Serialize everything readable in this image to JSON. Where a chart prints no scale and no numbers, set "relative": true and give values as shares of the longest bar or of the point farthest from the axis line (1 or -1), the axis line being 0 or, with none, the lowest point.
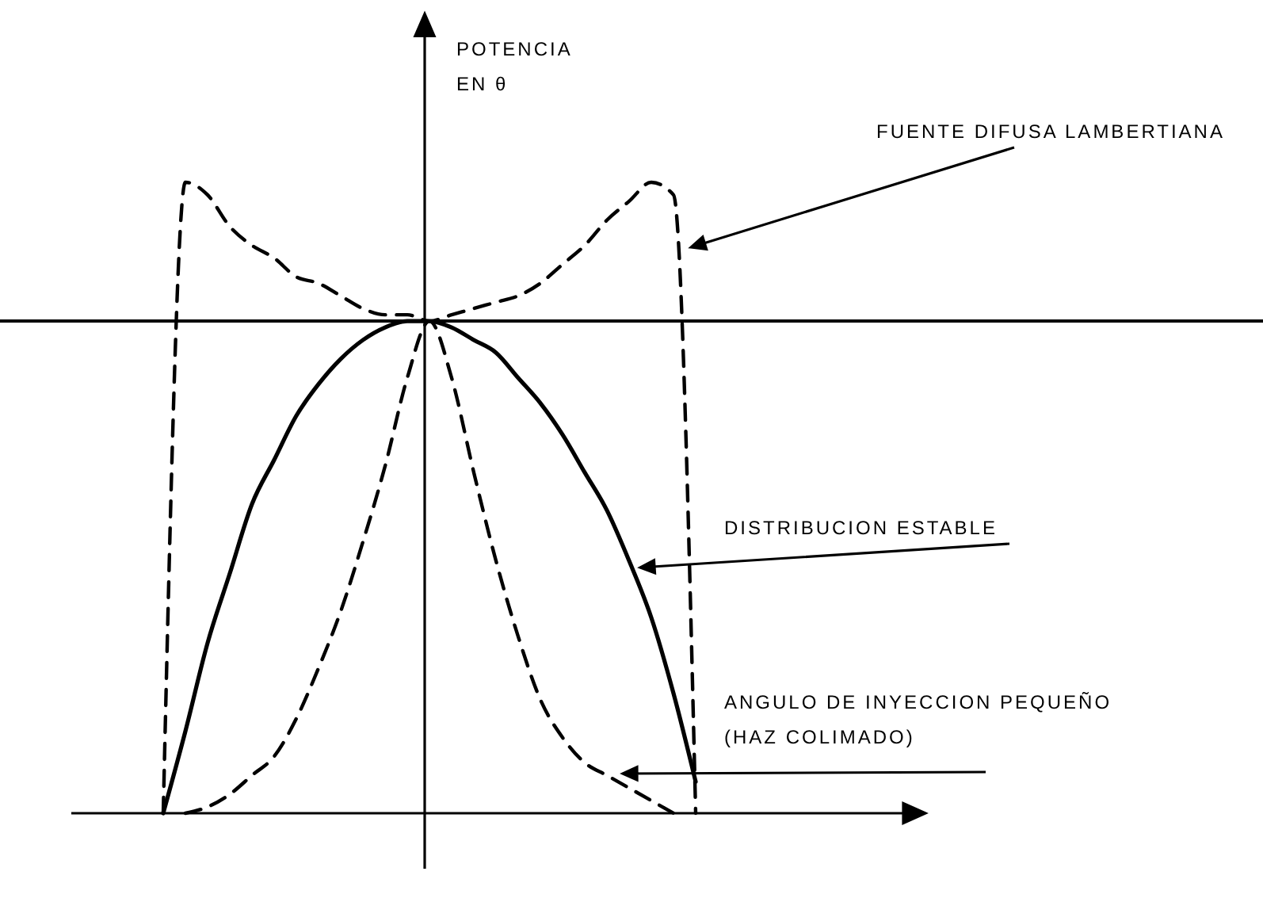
{
  "chart_data": {
    "type": "line",
    "relative": true,
    "ylabel": "POTENCIA EN θ",
    "marker": "none",
    "categories": [
      null,
      null,
      null,
      null,
      null,
      null,
      null,
      null,
      null,
      null,
      null,
      null,
      null,
      null,
      null,
      null,
      null,
      null,
      null,
      null,
      null,
      null,
      null,
      null,
      null
    ],
    "series": [
      {
        "name": "FUENTE DIFUSA LAMBERTIANA",
        "color": "#000000",
        "line_style": "dashed",
        "values": [
          0,
          1.0,
          0.98,
          0.93,
          0.9,
          0.88,
          0.85,
          0.84,
          0.82,
          0.8,
          0.79,
          0.79,
          0.78,
          0.79,
          0.8,
          0.81,
          0.82,
          0.84,
          0.87,
          0.9,
          0.94,
          0.97,
          1.0,
          0.98,
          0
        ]
      },
      {
        "name": "DISTRIBUCION ESTABLE",
        "color": "#000000",
        "line_style": "solid",
        "values": [
          0,
          0.13,
          0.27,
          0.38,
          0.49,
          0.56,
          0.63,
          0.68,
          0.72,
          0.75,
          0.77,
          0.78,
          0.78,
          0.77,
          0.75,
          0.73,
          0.69,
          0.65,
          0.6,
          0.54,
          0.48,
          0.4,
          0.31,
          0.19,
          0.05
        ]
      },
      {
        "name": "ANGULO DE INYECCION PEQUEÑO (HAZ COLIMADO)",
        "color": "#000000",
        "line_style": "dashed",
        "values": [
          null,
          0,
          0.01,
          0.03,
          0.06,
          0.09,
          0.15,
          0.23,
          0.32,
          0.43,
          0.55,
          0.69,
          0.78,
          0.69,
          0.54,
          0.4,
          0.28,
          0.18,
          0.12,
          0.08,
          0.06,
          0.04,
          0.02,
          0,
          null
        ]
      }
    ],
    "ref_lines": [
      {
        "axis": "y",
        "value": 0.78,
        "color": "#000000"
      }
    ]
  }
}
